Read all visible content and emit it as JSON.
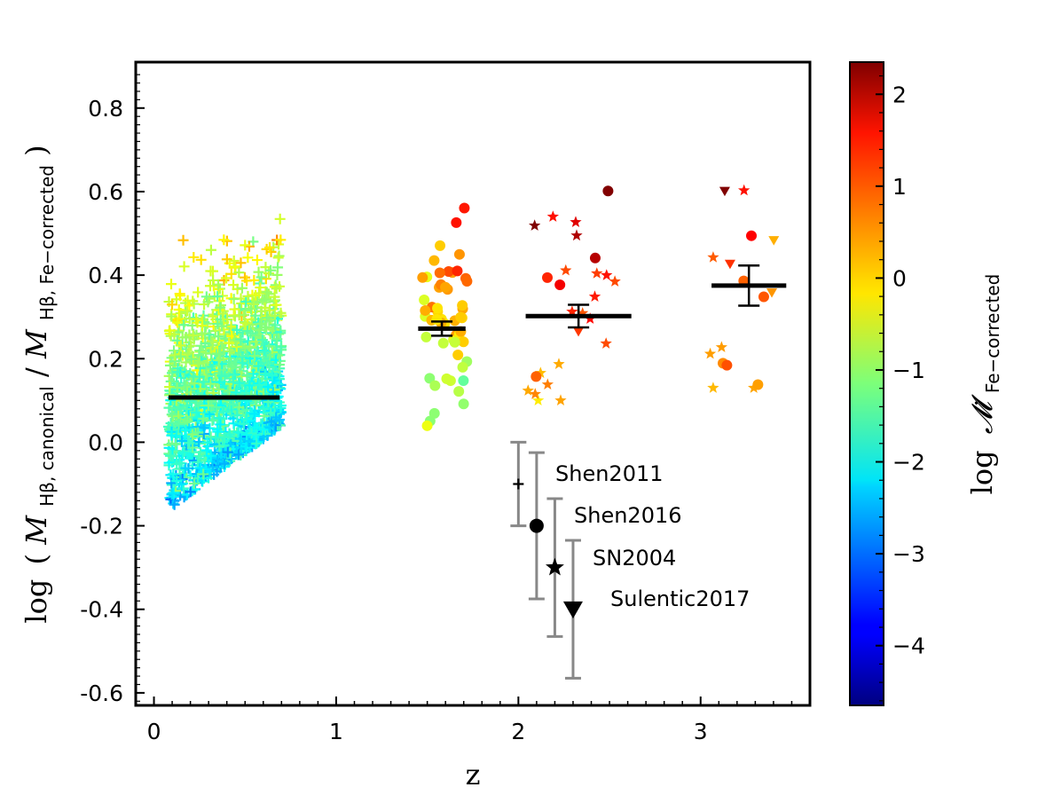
{
  "chart_data": {
    "type": "scatter",
    "xlabel": "z",
    "ylabel_parts": {
      "log": "log",
      "open": "(",
      "M1": "M",
      "sub1": "Hβ, canonical",
      "slash": "/",
      "M2": "M",
      "sub2": "Hβ, Fe−corrected",
      "close": ")"
    },
    "colorbar_label": {
      "log": "log",
      "symbol": "𝓜̇",
      "sub": "Fe−corrected"
    },
    "xlim": [
      -0.1,
      3.6
    ],
    "ylim": [
      -0.63,
      0.91
    ],
    "xticks": [
      0,
      1,
      2,
      3
    ],
    "xtick_labels": [
      "0",
      "1",
      "2",
      "3"
    ],
    "yticks": [
      0.8,
      0.6,
      0.4,
      0.2,
      0.0,
      -0.2,
      -0.4,
      -0.6
    ],
    "ytick_labels": [
      "0.8",
      "0.6",
      "0.4",
      "0.2",
      "0.0",
      "-0.2",
      "-0.4",
      "-0.6"
    ],
    "colorbar_range": [
      -4.65,
      2.35
    ],
    "colorbar_ticks": [
      2,
      1,
      0,
      -1,
      -2,
      -3,
      -4
    ],
    "colorbar_tick_labels": [
      "2",
      "1",
      "0",
      "−1",
      "−2",
      "−3",
      "−4"
    ],
    "colormap": "jet",
    "samples": [
      {
        "name": "Shen2011",
        "marker": "plus",
        "z_range": [
          0.08,
          0.7
        ],
        "n_points": 1500,
        "color_value_range": [
          -4,
          2
        ]
      },
      {
        "name": "Shen2016",
        "marker": "circle",
        "z_range": [
          1.45,
          1.75
        ],
        "n_points": 55,
        "color_value_range": [
          -1.5,
          1.2
        ]
      },
      {
        "name": "SN2004",
        "marker": "star",
        "z_range": [
          2.0,
          3.45
        ],
        "n_points": 40,
        "color_value_range": [
          -0.5,
          2.3
        ]
      },
      {
        "name": "Sulentic2017",
        "marker": "triangle",
        "z_range": [
          1.45,
          3.1
        ],
        "n_points": 20,
        "color_value_range": [
          0,
          1.6
        ]
      }
    ],
    "mean_markers": [
      {
        "z_range": [
          0.08,
          0.69
        ],
        "y": 0.107,
        "yerr": 0
      },
      {
        "z_range": [
          1.45,
          1.71
        ],
        "y": 0.272,
        "yerr": 0.017
      },
      {
        "z_range": [
          2.04,
          2.62
        ],
        "y": 0.302,
        "yerr": 0.027
      },
      {
        "z_range": [
          3.06,
          3.47
        ],
        "y": 0.375,
        "yerr": 0.048
      }
    ],
    "legend": [
      {
        "label": "Shen2011",
        "marker": "plus",
        "x": 2.0,
        "y": -0.1,
        "yerr": 0.1
      },
      {
        "label": "Shen2016",
        "marker": "circle",
        "x": 2.1,
        "y": -0.2,
        "yerr": 0.175
      },
      {
        "label": "SN2004",
        "marker": "star",
        "x": 2.2,
        "y": -0.3,
        "yerr": 0.165
      },
      {
        "label": "Sulentic2017",
        "marker": "triangle",
        "x": 2.3,
        "y": -0.4,
        "yerr": 0.165
      }
    ]
  }
}
